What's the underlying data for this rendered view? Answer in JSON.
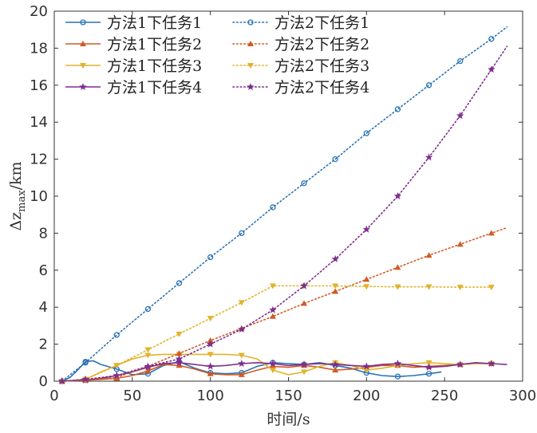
{
  "chart_data": {
    "type": "line",
    "xlabel": "时间/s",
    "ylabel_main": "Δz",
    "ylabel_sub": "max",
    "ylabel_unit": "/km",
    "xlim": [
      0,
      300
    ],
    "ylim": [
      0,
      20
    ],
    "xticks": [
      0,
      50,
      100,
      150,
      200,
      250,
      300
    ],
    "yticks": [
      0,
      2,
      4,
      6,
      8,
      10,
      12,
      14,
      16,
      18,
      20
    ],
    "xtick_labels": [
      "0",
      "50",
      "100",
      "150",
      "200",
      "250",
      "300"
    ],
    "ytick_labels": [
      "0",
      "2",
      "4",
      "6",
      "8",
      "10",
      "12",
      "14",
      "16",
      "18",
      "20"
    ],
    "grid": false,
    "legend_position": "top-left",
    "series": [
      {
        "name": "方法1下任务1",
        "color": "#2a72b5",
        "dash": "solid",
        "marker": "circle",
        "points": [
          [
            5,
            0
          ],
          [
            10,
            0.2
          ],
          [
            15,
            0.6
          ],
          [
            20,
            1.05
          ],
          [
            25,
            1.1
          ],
          [
            30,
            0.9
          ],
          [
            40,
            0.65
          ],
          [
            50,
            0.35
          ],
          [
            60,
            0.4
          ],
          [
            70,
            0.85
          ],
          [
            80,
            1.05
          ],
          [
            90,
            0.7
          ],
          [
            100,
            0.45
          ],
          [
            110,
            0.4
          ],
          [
            120,
            0.45
          ],
          [
            130,
            0.8
          ],
          [
            140,
            1.0
          ],
          [
            150,
            0.95
          ],
          [
            160,
            0.9
          ],
          [
            170,
            1.0
          ],
          [
            180,
            0.85
          ],
          [
            190,
            0.7
          ],
          [
            200,
            0.45
          ],
          [
            210,
            0.3
          ],
          [
            220,
            0.25
          ],
          [
            230,
            0.3
          ],
          [
            240,
            0.4
          ],
          [
            248,
            0.5
          ]
        ],
        "marker_x": [
          5,
          20,
          40,
          60,
          80,
          100,
          120,
          140,
          160,
          180,
          200,
          220,
          240
        ]
      },
      {
        "name": "方法1下任务2",
        "color": "#d15a25",
        "dash": "solid",
        "marker": "triangle-up",
        "points": [
          [
            5,
            0
          ],
          [
            20,
            0.05
          ],
          [
            30,
            0.1
          ],
          [
            40,
            0.15
          ],
          [
            50,
            0.3
          ],
          [
            60,
            0.55
          ],
          [
            70,
            0.9
          ],
          [
            80,
            0.85
          ],
          [
            90,
            0.65
          ],
          [
            100,
            0.4
          ],
          [
            110,
            0.35
          ],
          [
            120,
            0.35
          ],
          [
            130,
            0.6
          ],
          [
            140,
            0.8
          ],
          [
            150,
            0.75
          ],
          [
            160,
            0.85
          ],
          [
            170,
            0.75
          ],
          [
            180,
            0.6
          ],
          [
            190,
            0.65
          ],
          [
            200,
            0.75
          ],
          [
            210,
            0.85
          ],
          [
            220,
            0.85
          ],
          [
            230,
            0.75
          ],
          [
            240,
            0.8
          ],
          [
            250,
            0.85
          ],
          [
            260,
            0.9
          ],
          [
            270,
            0.95
          ],
          [
            280,
            0.95
          ]
        ],
        "marker_x": [
          5,
          20,
          40,
          60,
          80,
          100,
          120,
          140,
          160,
          180,
          200,
          220,
          240,
          260,
          280
        ]
      },
      {
        "name": "方法1下任务3",
        "color": "#e3b22b",
        "dash": "solid",
        "marker": "triangle-down",
        "points": [
          [
            5,
            0
          ],
          [
            20,
            0.1
          ],
          [
            30,
            0.5
          ],
          [
            40,
            0.85
          ],
          [
            50,
            1.2
          ],
          [
            60,
            1.4
          ],
          [
            70,
            1.45
          ],
          [
            80,
            1.45
          ],
          [
            90,
            1.45
          ],
          [
            100,
            1.45
          ],
          [
            110,
            1.45
          ],
          [
            120,
            1.4
          ],
          [
            130,
            1.2
          ],
          [
            140,
            0.6
          ],
          [
            150,
            0.35
          ],
          [
            160,
            0.5
          ],
          [
            170,
            0.8
          ],
          [
            180,
            1.0
          ],
          [
            190,
            0.85
          ],
          [
            200,
            0.6
          ],
          [
            210,
            0.7
          ],
          [
            220,
            0.85
          ],
          [
            230,
            0.95
          ],
          [
            240,
            1.0
          ],
          [
            250,
            0.95
          ],
          [
            260,
            0.9
          ],
          [
            270,
            0.95
          ],
          [
            280,
            0.95
          ]
        ],
        "marker_x": [
          5,
          20,
          40,
          60,
          80,
          100,
          120,
          140,
          160,
          180,
          200,
          220,
          240,
          260,
          280
        ]
      },
      {
        "name": "方法1下任务4",
        "color": "#7d2e8e",
        "dash": "solid",
        "marker": "star",
        "points": [
          [
            5,
            0
          ],
          [
            20,
            0.05
          ],
          [
            30,
            0.15
          ],
          [
            40,
            0.3
          ],
          [
            50,
            0.5
          ],
          [
            60,
            0.75
          ],
          [
            70,
            0.95
          ],
          [
            80,
            1.0
          ],
          [
            90,
            0.9
          ],
          [
            100,
            0.8
          ],
          [
            110,
            0.85
          ],
          [
            120,
            0.95
          ],
          [
            130,
            1.0
          ],
          [
            140,
            0.95
          ],
          [
            150,
            0.85
          ],
          [
            160,
            0.9
          ],
          [
            170,
            0.95
          ],
          [
            180,
            0.9
          ],
          [
            190,
            0.85
          ],
          [
            200,
            0.8
          ],
          [
            210,
            0.9
          ],
          [
            220,
            0.95
          ],
          [
            230,
            0.85
          ],
          [
            240,
            0.75
          ],
          [
            250,
            0.8
          ],
          [
            260,
            0.9
          ],
          [
            270,
            1.0
          ],
          [
            280,
            0.95
          ],
          [
            290,
            0.9
          ]
        ],
        "marker_x": [
          5,
          20,
          40,
          60,
          80,
          100,
          120,
          140,
          160,
          180,
          200,
          220,
          240,
          260,
          280
        ]
      },
      {
        "name": "方法2下任务1",
        "color": "#2a72b5",
        "dash": "dotted",
        "marker": "circle",
        "points": [
          [
            5,
            0
          ],
          [
            20,
            1.0
          ],
          [
            40,
            2.5
          ],
          [
            60,
            3.9
          ],
          [
            80,
            5.3
          ],
          [
            100,
            6.7
          ],
          [
            120,
            8.0
          ],
          [
            140,
            9.4
          ],
          [
            160,
            10.7
          ],
          [
            180,
            12.0
          ],
          [
            200,
            13.4
          ],
          [
            220,
            14.7
          ],
          [
            240,
            16.0
          ],
          [
            260,
            17.3
          ],
          [
            280,
            18.5
          ],
          [
            290,
            19.15
          ]
        ],
        "marker_x": [
          5,
          20,
          40,
          60,
          80,
          100,
          120,
          140,
          160,
          180,
          200,
          220,
          240,
          260,
          280
        ]
      },
      {
        "name": "方法2下任务2",
        "color": "#d15a25",
        "dash": "dotted",
        "marker": "triangle-up",
        "points": [
          [
            5,
            0
          ],
          [
            20,
            0.05
          ],
          [
            40,
            0.2
          ],
          [
            60,
            0.8
          ],
          [
            80,
            1.5
          ],
          [
            100,
            2.2
          ],
          [
            120,
            2.85
          ],
          [
            140,
            3.5
          ],
          [
            160,
            4.2
          ],
          [
            180,
            4.85
          ],
          [
            200,
            5.5
          ],
          [
            220,
            6.15
          ],
          [
            240,
            6.8
          ],
          [
            260,
            7.4
          ],
          [
            280,
            8.0
          ],
          [
            290,
            8.3
          ]
        ],
        "marker_x": [
          5,
          20,
          40,
          60,
          80,
          100,
          120,
          140,
          160,
          180,
          200,
          220,
          240,
          260,
          280
        ]
      },
      {
        "name": "方法2下任务3",
        "color": "#e3b22b",
        "dash": "dotted",
        "marker": "triangle-down",
        "points": [
          [
            5,
            0
          ],
          [
            20,
            0.1
          ],
          [
            40,
            0.85
          ],
          [
            60,
            1.7
          ],
          [
            80,
            2.55
          ],
          [
            100,
            3.4
          ],
          [
            120,
            4.25
          ],
          [
            140,
            5.15
          ],
          [
            160,
            5.15
          ],
          [
            180,
            5.15
          ],
          [
            200,
            5.12
          ],
          [
            220,
            5.1
          ],
          [
            240,
            5.1
          ],
          [
            260,
            5.08
          ],
          [
            280,
            5.08
          ]
        ],
        "marker_x": [
          5,
          20,
          40,
          60,
          80,
          100,
          120,
          140,
          160,
          180,
          200,
          220,
          240,
          260,
          280
        ]
      },
      {
        "name": "方法2下任务4",
        "color": "#7d2e8e",
        "dash": "dotted",
        "marker": "star",
        "points": [
          [
            5,
            0
          ],
          [
            20,
            0.1
          ],
          [
            40,
            0.3
          ],
          [
            60,
            0.8
          ],
          [
            80,
            1.2
          ],
          [
            100,
            2.0
          ],
          [
            120,
            2.8
          ],
          [
            140,
            3.85
          ],
          [
            160,
            5.15
          ],
          [
            180,
            6.6
          ],
          [
            200,
            8.2
          ],
          [
            220,
            10.0
          ],
          [
            240,
            12.1
          ],
          [
            260,
            14.35
          ],
          [
            280,
            16.85
          ],
          [
            290,
            18.1
          ]
        ],
        "marker_x": [
          5,
          20,
          40,
          60,
          80,
          100,
          120,
          140,
          160,
          180,
          200,
          220,
          240,
          260,
          280
        ]
      }
    ]
  }
}
